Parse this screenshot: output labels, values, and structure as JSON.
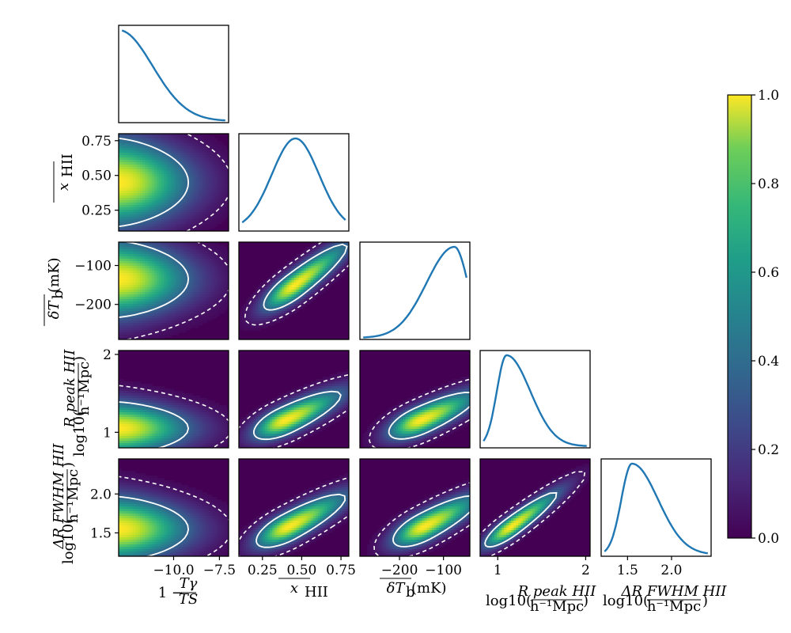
{
  "chart_data": {
    "type": "corner",
    "parameters": [
      {
        "key": "p1",
        "label": "1 − Tγ/TS",
        "range": [
          -13.0,
          -7.0
        ],
        "ticks": [
          -10.0,
          -7.5
        ],
        "tick_labels": [
          "−10.0",
          "−7.5"
        ]
      },
      {
        "key": "p2",
        "label": "x̄HII",
        "range": [
          0.1,
          0.8
        ],
        "ticks": [
          0.25,
          0.5,
          0.75
        ],
        "tick_labels": [
          "0.25",
          "0.50",
          "0.75"
        ]
      },
      {
        "key": "p3",
        "label": "δT̄b(mK)",
        "range": [
          -290,
          -40
        ],
        "ticks": [
          -200,
          -100
        ],
        "tick_labels": [
          "−200",
          "−100"
        ]
      },
      {
        "key": "p4",
        "label": "log10(R^HII_peak / h⁻¹Mpc)",
        "range": [
          0.8,
          2.05
        ],
        "ticks": [
          1,
          2
        ],
        "tick_labels": [
          "1",
          "2"
        ]
      },
      {
        "key": "p5",
        "label": "log10(ΔR^HII_FWHM / h⁻¹Mpc)",
        "range": [
          1.2,
          2.45
        ],
        "ticks": [
          1.5,
          2.0
        ],
        "tick_labels": [
          "1.5",
          "2.0"
        ]
      }
    ],
    "y_tick_labels": {
      "p2": [
        "0.25",
        "0.50",
        "0.75"
      ],
      "p3": [
        "−200",
        "−100"
      ],
      "p4": [
        "1",
        "2"
      ],
      "p5": [
        "1.5",
        "2.0"
      ]
    },
    "marginals": [
      {
        "param": "p1",
        "peak": -13.0,
        "width": 1.85,
        "skew": 0,
        "shape": "half-gaussian"
      },
      {
        "param": "p2",
        "peak": 0.46,
        "width": 0.15,
        "skew": 0,
        "shape": "gaussian"
      },
      {
        "param": "p3",
        "peak": -75,
        "width": 55,
        "skew": -1.2,
        "shape": "skewed"
      },
      {
        "param": "p4",
        "peak": 1.1,
        "width": 0.2,
        "skew": 4,
        "shape": "skewed"
      },
      {
        "param": "p5",
        "peak": 1.55,
        "width": 0.22,
        "skew": 3,
        "shape": "skewed"
      }
    ],
    "joint_panels": [
      {
        "x": "p1",
        "y": "p2"
      },
      {
        "x": "p1",
        "y": "p3"
      },
      {
        "x": "p1",
        "y": "p4"
      },
      {
        "x": "p1",
        "y": "p5"
      },
      {
        "x": "p2",
        "y": "p3"
      },
      {
        "x": "p2",
        "y": "p4"
      },
      {
        "x": "p2",
        "y": "p5"
      },
      {
        "x": "p3",
        "y": "p4"
      },
      {
        "x": "p3",
        "y": "p5"
      },
      {
        "x": "p4",
        "y": "p5"
      }
    ],
    "contours": {
      "inner": "solid white (68%)",
      "outer": "dashed white (95%)"
    },
    "colormap": "viridis",
    "colorbar": {
      "range": [
        0.0,
        1.0
      ],
      "ticks": [
        0.0,
        0.2,
        0.4,
        0.6,
        0.8,
        1.0
      ],
      "tick_labels": [
        "0.0",
        "0.2",
        "0.4",
        "0.6",
        "0.8",
        "1.0"
      ]
    },
    "colors": {
      "marginal_line": "#1f77b4",
      "contour": "#ffffff",
      "cmap_low": "#440154",
      "cmap_high": "#fde725"
    }
  }
}
